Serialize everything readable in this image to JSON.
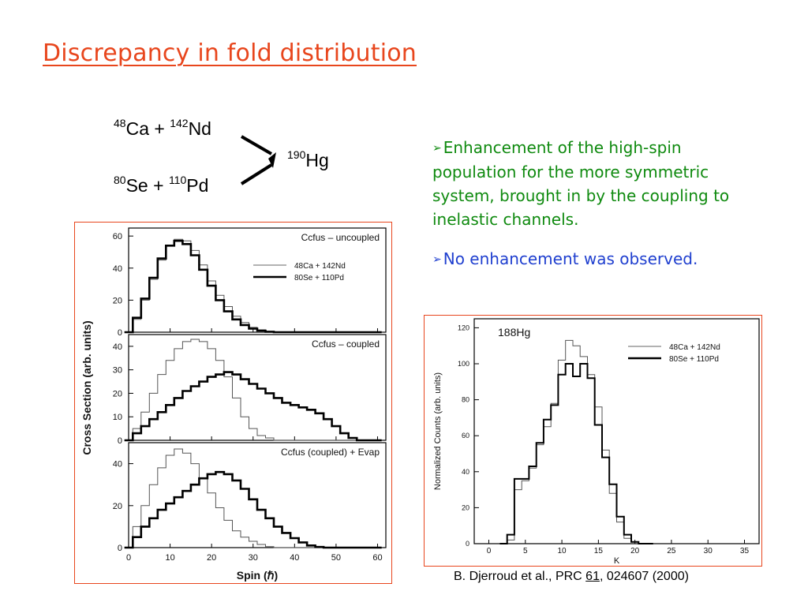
{
  "slide": {
    "title": "Discrepancy in fold distribution",
    "reactions": {
      "r1": {
        "a_mass": "48",
        "a_el": "Ca",
        "plus": "+",
        "b_mass": "142",
        "b_el": "Nd"
      },
      "r2": {
        "a_mass": "80",
        "a_el": "Se",
        "plus": "+",
        "b_mass": "110",
        "b_el": "Pd"
      },
      "product": {
        "mass": "190",
        "el": "Hg"
      }
    },
    "bullets": [
      {
        "marker": "➢",
        "text": "Enhancement of the high-spin population for the more symmetric system, brought in by the coupling to inelastic channels."
      },
      {
        "marker": "➢",
        "text": "No enhancement was observed."
      }
    ],
    "caption": {
      "pre": "B. Djerroud et al., PRC ",
      "volume": "61",
      "post": ", 024607 (2000)"
    },
    "colors": {
      "title": "#e8461d",
      "bullet1": "#0f8a0f",
      "bullet2": "#1f3fcf",
      "frame": "#e8461d"
    }
  },
  "chart_data": [
    {
      "type": "line",
      "title": "",
      "xlabel": "Spin (ℏ)",
      "ylabel": "Cross Section (arb. units)",
      "xlim": [
        0,
        62
      ],
      "x_ticks": [
        "0",
        "10",
        "20",
        "30",
        "40",
        "50",
        "60"
      ],
      "legend_labels": {
        "thin": "48Ca + 142Nd",
        "thick": "80Se + 110Pd"
      },
      "x": [
        0,
        2,
        4,
        6,
        8,
        10,
        12,
        14,
        16,
        18,
        20,
        22,
        24,
        26,
        28,
        30,
        32,
        34,
        36,
        38,
        40,
        42,
        44,
        46,
        48,
        50,
        52,
        54,
        56,
        58,
        60
      ],
      "panels": [
        {
          "label": "Ccfus – uncoupled",
          "ylim": [
            0,
            65
          ],
          "y_ticks": [
            "0",
            "20",
            "40",
            "60"
          ],
          "series": [
            {
              "name": "48Ca + 142Nd",
              "style": "thin",
              "values": [
                0,
                8,
                20,
                33,
                45,
                54,
                58,
                57,
                51,
                42,
                32,
                23,
                16,
                10,
                6,
                3,
                1.5,
                0.5,
                0.2,
                0,
                0,
                0,
                0,
                0,
                0,
                0,
                0,
                0,
                0,
                0,
                0
              ]
            },
            {
              "name": "80Se + 110Pd",
              "style": "thick",
              "values": [
                0,
                9,
                21,
                34,
                46,
                54,
                57,
                55,
                48,
                39,
                29,
                20,
                13,
                8,
                4.5,
                2.2,
                1,
                0.3,
                0,
                0,
                0,
                0,
                0,
                0,
                0,
                0,
                0,
                0,
                0,
                0,
                0
              ]
            }
          ]
        },
        {
          "label": "Ccfus – coupled",
          "ylim": [
            0,
            45
          ],
          "y_ticks": [
            "0",
            "10",
            "20",
            "30",
            "40"
          ],
          "series": [
            {
              "name": "48Ca + 142Nd",
              "style": "thin",
              "values": [
                0,
                5,
                12,
                20,
                28,
                34,
                39,
                42,
                43,
                42,
                39,
                34,
                27,
                18,
                10,
                5,
                2,
                1,
                0,
                0,
                0,
                0,
                0,
                0,
                0,
                0,
                0,
                0,
                0,
                0,
                0
              ]
            },
            {
              "name": "80Se + 110Pd",
              "style": "thick",
              "values": [
                0,
                3,
                6,
                9,
                12,
                15,
                18,
                21,
                23,
                25,
                27,
                28,
                29,
                28,
                26,
                24,
                22,
                20,
                18,
                16,
                15,
                14,
                13,
                11.5,
                9,
                6,
                3,
                1,
                0,
                0,
                0
              ]
            }
          ]
        },
        {
          "label": "Ccfus (coupled) + Evap",
          "ylim": [
            0,
            50
          ],
          "y_ticks": [
            "0",
            "20",
            "40"
          ],
          "series": [
            {
              "name": "48Ca + 142Nd",
              "style": "thin",
              "values": [
                0,
                10,
                20,
                30,
                38,
                44,
                47,
                45,
                40,
                33,
                26,
                19,
                13,
                8,
                5,
                3,
                1.5,
                0.5,
                0,
                0,
                0,
                0,
                0,
                0,
                0,
                0,
                0,
                0,
                0,
                0,
                0
              ]
            },
            {
              "name": "80Se + 110Pd",
              "style": "thick",
              "values": [
                0,
                5,
                10,
                14,
                18,
                21,
                24,
                27,
                30,
                33,
                35,
                36,
                35,
                32,
                28,
                23,
                18,
                14,
                10,
                7,
                4.5,
                2.5,
                1,
                0.3,
                0,
                0,
                0,
                0,
                0,
                0,
                0
              ]
            }
          ]
        }
      ]
    },
    {
      "type": "line",
      "title": "188Hg",
      "xlabel": "K",
      "ylabel": "Normalized Counts (arb. units)",
      "xlim": [
        -2,
        37
      ],
      "ylim": [
        0,
        125
      ],
      "x_ticks": [
        "0",
        "5",
        "10",
        "15",
        "20",
        "25",
        "30",
        "35"
      ],
      "y_ticks": [
        "0",
        "20",
        "40",
        "60",
        "80",
        "100",
        "120"
      ],
      "x": [
        2,
        3,
        4,
        5,
        6,
        7,
        8,
        9,
        10,
        11,
        12,
        13,
        14,
        15,
        16,
        17,
        18,
        19,
        20,
        21,
        22
      ],
      "series": [
        {
          "name": "48Ca + 142Nd",
          "style": "thin",
          "values": [
            0,
            2,
            30,
            35,
            42,
            55,
            65,
            78,
            102,
            113,
            110,
            104,
            94,
            76,
            52,
            28,
            12,
            3,
            1,
            0,
            0
          ]
        },
        {
          "name": "80Se + 110Pd",
          "style": "thick",
          "values": [
            0,
            5,
            36,
            36,
            43,
            56,
            69,
            77,
            94,
            100,
            93,
            100,
            92,
            66,
            48,
            33,
            15,
            5,
            1,
            0,
            0
          ]
        }
      ]
    }
  ]
}
